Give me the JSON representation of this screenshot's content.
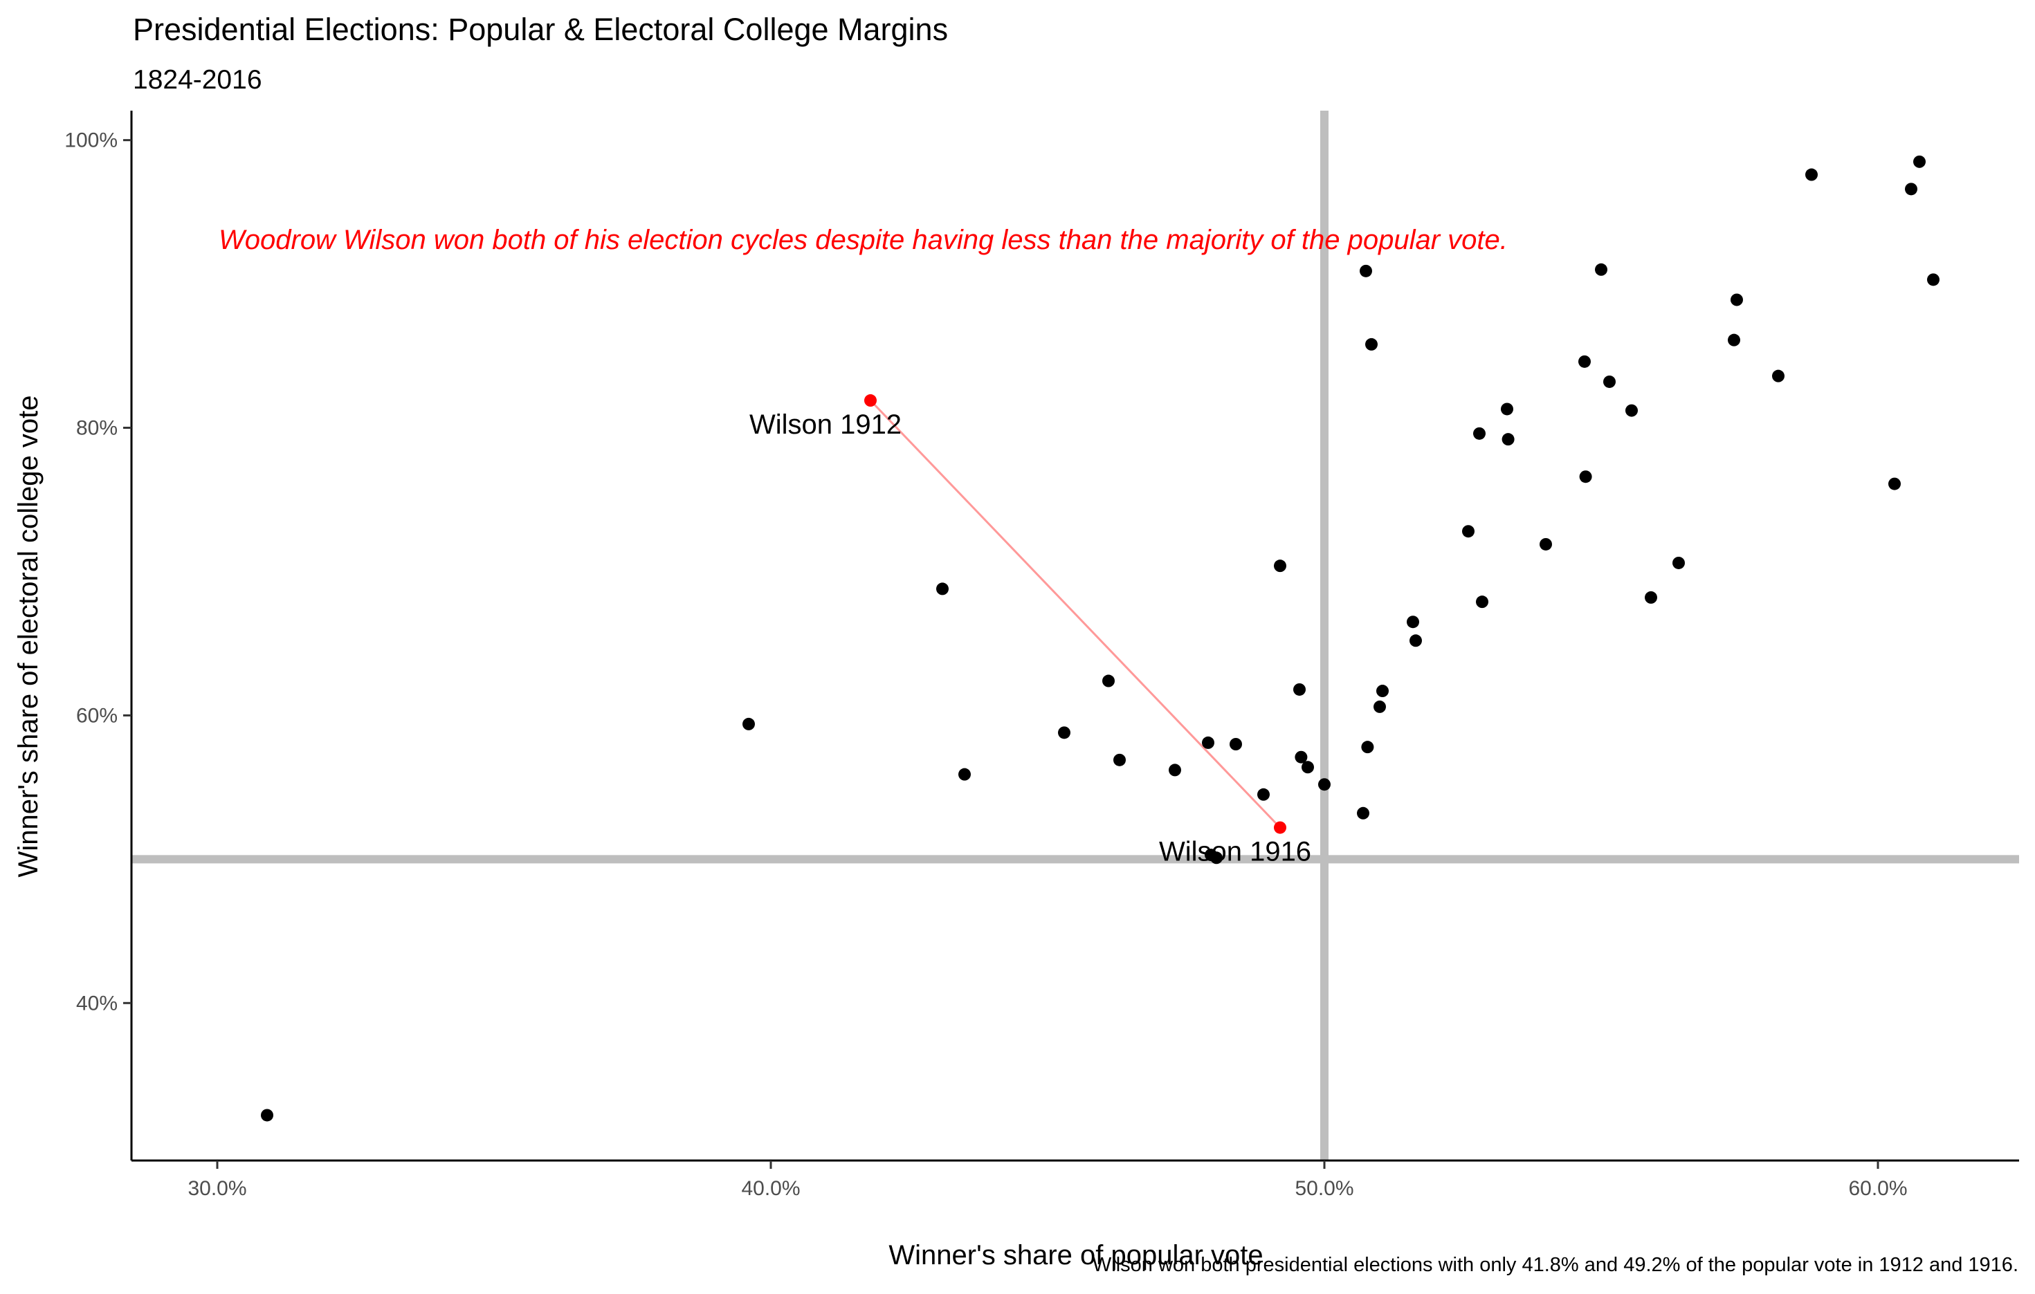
{
  "chart_data": {
    "type": "scatter",
    "title": "Presidential Elections: Popular & Electoral College Margins",
    "subtitle": "1824-2016",
    "xlabel": "Winner's share of popular vote",
    "ylabel": "Winner's share of electoral college vote",
    "caption": "Wilson won both presidential elections with only 41.8% and 49.2% of the popular vote in 1912 and 1916.",
    "annotation": "Woodrow Wilson won both of his election cycles despite having less than the majority of the popular vote.",
    "xlim": [
      0.2845,
      0.6255
    ],
    "ylim": [
      0.2905,
      1.0205
    ],
    "x_ticks": [
      {
        "value": 0.3,
        "label": "30.0%"
      },
      {
        "value": 0.4,
        "label": "40.0%"
      },
      {
        "value": 0.5,
        "label": "50.0%"
      },
      {
        "value": 0.6,
        "label": "60.0%"
      }
    ],
    "y_ticks": [
      {
        "value": 0.4,
        "label": "40%"
      },
      {
        "value": 0.6,
        "label": "60%"
      },
      {
        "value": 0.8,
        "label": "80%"
      },
      {
        "value": 1.0,
        "label": "100%"
      }
    ],
    "reference_lines": {
      "x": 0.5,
      "y": 0.5,
      "color": "#bebebe"
    },
    "grid": false,
    "colors": {
      "points": "#000000",
      "highlight": "#ff0000",
      "connector": "#ff9999",
      "annotation": "#ff0000"
    },
    "points": [
      [
        0.309,
        0.322
      ],
      [
        0.396,
        0.594
      ],
      [
        0.431,
        0.688
      ],
      [
        0.435,
        0.559
      ],
      [
        0.453,
        0.588
      ],
      [
        0.461,
        0.624
      ],
      [
        0.463,
        0.569
      ],
      [
        0.473,
        0.562
      ],
      [
        0.479,
        0.581
      ],
      [
        0.4795,
        0.503
      ],
      [
        0.4805,
        0.501
      ],
      [
        0.484,
        0.58
      ],
      [
        0.489,
        0.545
      ],
      [
        0.492,
        0.704
      ],
      [
        0.4955,
        0.618
      ],
      [
        0.4958,
        0.571
      ],
      [
        0.497,
        0.564
      ],
      [
        0.5,
        0.552
      ],
      [
        0.507,
        0.532
      ],
      [
        0.5075,
        0.909
      ],
      [
        0.5078,
        0.578
      ],
      [
        0.5085,
        0.858
      ],
      [
        0.51,
        0.606
      ],
      [
        0.5105,
        0.617
      ],
      [
        0.516,
        0.665
      ],
      [
        0.5165,
        0.652
      ],
      [
        0.526,
        0.728
      ],
      [
        0.528,
        0.796
      ],
      [
        0.5285,
        0.679
      ],
      [
        0.533,
        0.813
      ],
      [
        0.5332,
        0.792
      ],
      [
        0.54,
        0.719
      ],
      [
        0.547,
        0.846
      ],
      [
        0.5472,
        0.766
      ],
      [
        0.55,
        0.91
      ],
      [
        0.5515,
        0.832
      ],
      [
        0.5555,
        0.812
      ],
      [
        0.559,
        0.682
      ],
      [
        0.564,
        0.706
      ],
      [
        0.574,
        0.861
      ],
      [
        0.5745,
        0.889
      ],
      [
        0.582,
        0.836
      ],
      [
        0.588,
        0.976
      ],
      [
        0.603,
        0.761
      ],
      [
        0.606,
        0.966
      ],
      [
        0.6075,
        0.985
      ],
      [
        0.61,
        0.903
      ]
    ],
    "highlighted": [
      {
        "label": "Wilson 1912",
        "x": 0.418,
        "y": 0.819
      },
      {
        "label": "Wilson 1916",
        "x": 0.492,
        "y": 0.522
      }
    ]
  }
}
